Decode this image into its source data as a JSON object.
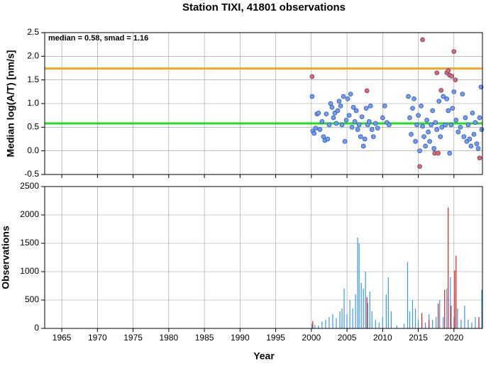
{
  "chart_data": [
    {
      "type": "scatter",
      "title": "Station TIXI, 41801 observations",
      "annotation": "median = 0.58, smad = 1.16",
      "y_label": "Median log(A/T) [nm/s]",
      "ylim": [
        -0.5,
        2.5
      ],
      "yticks": [
        -0.5,
        {
          "value": 0,
          "label": "0.0"
        },
        0.5,
        {
          "value": 1,
          "label": "1.0"
        },
        1.5,
        {
          "value": 2,
          "label": "2.0"
        },
        2.5
      ],
      "grid": true,
      "hlines": [
        {
          "value": 1.74,
          "color": "#f5a52a"
        },
        {
          "value": 0.58,
          "color": "#22dd22"
        }
      ],
      "series": [
        {
          "color": "#6f9cf0",
          "x": [
            2000.1,
            2000.2,
            2000.4,
            2000.6,
            2000.8,
            2001.0,
            2001.2,
            2001.5,
            2001.7,
            2001.9,
            2002.1,
            2002.3,
            2002.5,
            2002.7,
            2002.9,
            2003.1,
            2003.3,
            2003.5,
            2003.7,
            2003.9,
            2004.1,
            2004.3,
            2004.5,
            2004.7,
            2004.9,
            2005.1,
            2005.3,
            2005.5,
            2005.7,
            2005.9,
            2006.1,
            2006.3,
            2006.5,
            2006.7,
            2006.9,
            2007.1,
            2007.3,
            2007.5,
            2007.7,
            2007.9,
            2008.1,
            2008.3,
            2008.5,
            2008.7,
            2009.0,
            2009.3,
            2010.0,
            2010.3,
            2010.6,
            2010.9,
            2013.6,
            2013.8,
            2014.0,
            2014.2,
            2014.4,
            2014.6,
            2014.8,
            2015.0,
            2015.2,
            2015.4,
            2015.6,
            2015.8,
            2016.0,
            2016.2,
            2016.4,
            2016.6,
            2016.8,
            2017.0,
            2017.2,
            2017.4,
            2017.6,
            2017.9,
            2018.1,
            2018.3,
            2018.5,
            2018.8,
            2019.0,
            2019.2,
            2019.4,
            2019.6,
            2019.8,
            2020.0,
            2020.3,
            2020.6,
            2020.9,
            2021.2,
            2021.4,
            2021.6,
            2021.8,
            2022.0,
            2022.2,
            2022.4,
            2022.6,
            2022.8,
            2023.0,
            2023.2,
            2023.4,
            2023.6,
            2023.8,
            2023.9
          ],
          "values": [
            1.15,
            0.42,
            0.37,
            0.48,
            0.78,
            0.8,
            0.45,
            0.62,
            0.3,
            0.22,
            0.78,
            0.25,
            0.55,
            1.0,
            0.92,
            0.7,
            0.8,
            0.58,
            0.85,
            1.05,
            0.95,
            0.55,
            1.15,
            0.2,
            0.65,
            1.1,
            0.75,
            1.2,
            0.5,
            0.92,
            0.62,
            0.85,
            0.45,
            0.55,
            0.3,
            0.72,
            0.1,
            0.25,
            0.9,
            0.55,
            0.62,
            0.95,
            0.45,
            0.3,
            0.58,
            0.48,
            0.7,
            0.95,
            0.6,
            0.55,
            1.15,
            0.7,
            0.35,
            0.9,
            1.1,
            0.2,
            0.55,
            0.75,
            0.0,
            0.95,
            0.52,
            0.3,
            0.1,
            0.65,
            0.4,
            0.2,
            0.55,
            0.85,
            0.05,
            0.6,
            0.45,
            1.05,
            0.3,
            0.5,
            1.15,
            0.55,
            1.1,
            0.85,
            -0.05,
            0.55,
            0.9,
            1.25,
            0.65,
            0.4,
            0.5,
            1.2,
            0.3,
            0.7,
            0.2,
            0.55,
            0.25,
            0.1,
            0.8,
            0.35,
            0.6,
            0.15,
            0.05,
            0.7,
            1.35,
            0.45
          ]
        },
        {
          "color": "#f2605a",
          "x": [
            2000.1,
            2007.8,
            2015.2,
            2015.6,
            2017.3,
            2017.6,
            2017.8,
            2018.2,
            2019.0,
            2019.2,
            2019.4,
            2019.7,
            2020.0,
            2020.2,
            2023.6
          ],
          "values": [
            1.57,
            1.27,
            -0.33,
            2.35,
            -0.05,
            1.65,
            -0.05,
            1.28,
            1.65,
            1.7,
            1.6,
            1.58,
            2.1,
            1.5,
            -0.15
          ]
        }
      ]
    },
    {
      "type": "bar",
      "y_label": "Observations",
      "x_label": "Year",
      "xlim": [
        1962.6,
        2024
      ],
      "xticks": [
        1965,
        1970,
        1975,
        1980,
        1985,
        1990,
        1995,
        2000,
        2005,
        2010,
        2015,
        2020
      ],
      "ylim": [
        0,
        2500
      ],
      "yticks": [
        0,
        500,
        1000,
        1500,
        2000,
        2500
      ],
      "grid": true,
      "series": [
        {
          "color": "#3a97e8",
          "x": [
            2000.1,
            2000.5,
            2001.0,
            2001.5,
            2002.0,
            2002.5,
            2003.0,
            2003.5,
            2004.0,
            2004.3,
            2004.6,
            2005.0,
            2005.4,
            2005.8,
            2006.2,
            2006.5,
            2006.7,
            2007.0,
            2007.3,
            2007.6,
            2007.9,
            2008.2,
            2008.5,
            2009.0,
            2009.5,
            2010.0,
            2010.5,
            2010.8,
            2011.2,
            2012.0,
            2013.0,
            2013.5,
            2013.8,
            2014.2,
            2014.6,
            2015.0,
            2015.5,
            2016.0,
            2016.5,
            2017.0,
            2017.5,
            2018.0,
            2018.5,
            2019.0,
            2019.5,
            2020.0,
            2020.5,
            2021.0,
            2021.5,
            2022.0,
            2022.5,
            2023.0,
            2023.5,
            2023.9
          ],
          "values": [
            80,
            60,
            50,
            120,
            150,
            200,
            250,
            180,
            300,
            350,
            700,
            250,
            500,
            350,
            600,
            1600,
            1500,
            800,
            700,
            1000,
            450,
            650,
            300,
            150,
            100,
            200,
            600,
            900,
            300,
            50,
            80,
            1170,
            300,
            500,
            350,
            150,
            120,
            100,
            250,
            150,
            200,
            500,
            200,
            700,
            900,
            200,
            350,
            150,
            400,
            150,
            100,
            200,
            150,
            680
          ]
        },
        {
          "color": "#d62020",
          "x": [
            2000.2,
            2007.8,
            2015.5,
            2016.5,
            2017.8,
            2018.7,
            2019.2,
            2019.6,
            2020.1,
            2020.3,
            2023.5
          ],
          "values": [
            130,
            550,
            270,
            150,
            440,
            680,
            2130,
            400,
            1020,
            1280,
            200
          ]
        }
      ]
    }
  ]
}
